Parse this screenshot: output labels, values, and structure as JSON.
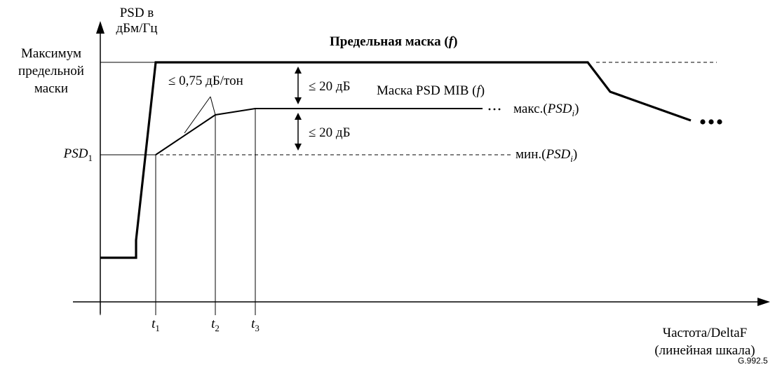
{
  "y_axis": {
    "label_line1": "PSD в",
    "label_line2": "дБм/Гц"
  },
  "x_axis": {
    "label_line1": "Частота/DeltaF",
    "label_line2": "(линейная шкала)"
  },
  "y_levels": {
    "max_limit_mask_lines": [
      "Максимум",
      "предельной",
      "маски"
    ],
    "psd1_main": "PSD",
    "psd1_sub": "1"
  },
  "ticks": [
    {
      "main": "t",
      "sub": "1"
    },
    {
      "main": "t",
      "sub": "2"
    },
    {
      "main": "t",
      "sub": "3"
    }
  ],
  "curves": {
    "limit_mask": {
      "text": "Предельная маска (",
      "var": "f",
      "close": ")"
    },
    "psd_mask_mib": {
      "text": "Маска PSD MIB (",
      "var": "f",
      "close": ")"
    }
  },
  "annotations": {
    "slope": "≤ 0,75 дБ/тон",
    "delta_upper": "≤ 20 дБ",
    "delta_lower": "≤ 20 дБ",
    "max_psd": {
      "prefix": "макс.(",
      "var": "PSD",
      "sub": "i",
      "suffix": ")"
    },
    "min_psd": {
      "prefix": "мин.(",
      "var": "PSD",
      "sub": "i",
      "suffix": ")"
    }
  },
  "figure_id": "G.992.5",
  "colors": {
    "ink": "#000000",
    "background": "#ffffff"
  }
}
